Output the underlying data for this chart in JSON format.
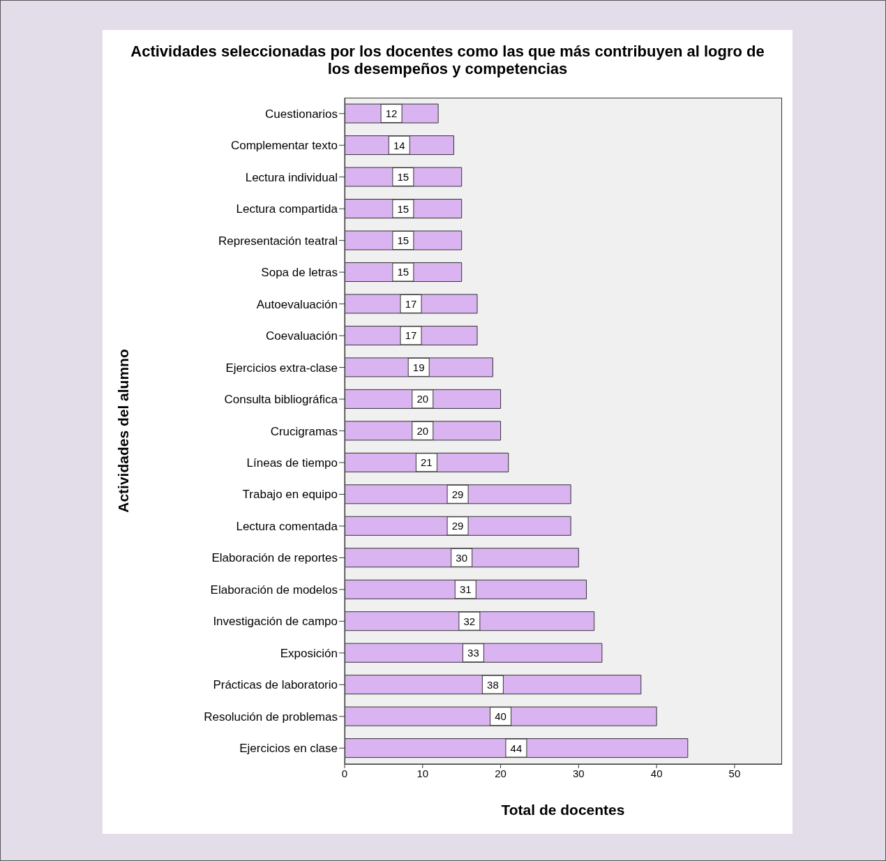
{
  "chart_data": {
    "type": "bar",
    "orientation": "horizontal",
    "title": "Actividades seleccionadas por los docentes como las que más contribuyen al logro de los desempeños y competencias",
    "xlabel": "Total de docentes",
    "ylabel": "Actividades del alumno",
    "categories": [
      "Cuestionarios",
      "Complementar texto",
      "Lectura individual",
      "Lectura compartida",
      "Representación teatral",
      "Sopa de letras",
      "Autoevaluación",
      "Coevaluación",
      "Ejercicios extra-clase",
      "Consulta bibliográfica",
      "Crucigramas",
      "Líneas de tiempo",
      "Trabajo en equipo",
      "Lectura comentada",
      "Elaboración de reportes",
      "Elaboración de modelos",
      "Investigación de campo",
      "Exposición",
      "Prácticas de laboratorio",
      "Resolución de problemas",
      "Ejercicios en clase"
    ],
    "values": [
      12,
      14,
      15,
      15,
      15,
      15,
      17,
      17,
      19,
      20,
      20,
      21,
      29,
      29,
      30,
      31,
      32,
      33,
      38,
      40,
      44
    ],
    "color": "#dab4f0",
    "xlim": [
      0,
      56
    ],
    "xticks": [
      0,
      10,
      20,
      30,
      40,
      50
    ],
    "data_labels": true
  }
}
